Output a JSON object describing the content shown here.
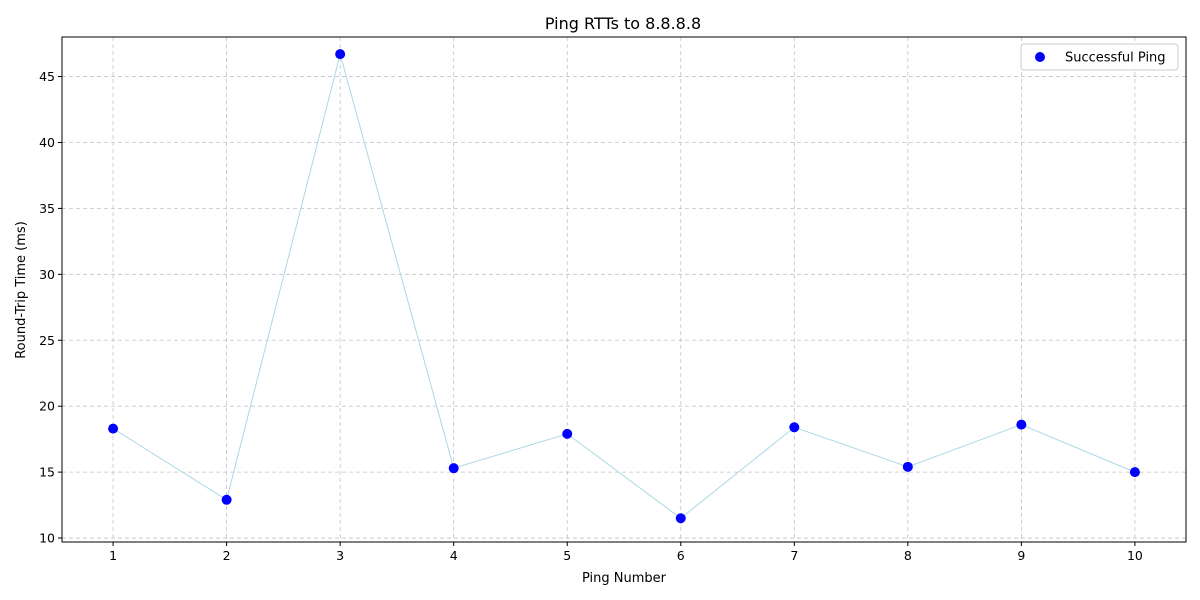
{
  "chart_data": {
    "type": "scatter",
    "title": "Ping RTTs to 8.8.8.8",
    "xlabel": "Ping Number",
    "ylabel": "Round-Trip Time (ms)",
    "x": [
      1,
      2,
      3,
      4,
      5,
      6,
      7,
      8,
      9,
      10
    ],
    "series": [
      {
        "name": "Successful Ping",
        "values": [
          18.3,
          12.9,
          46.7,
          15.3,
          17.9,
          11.5,
          18.4,
          15.4,
          18.6,
          15.0
        ],
        "marker_color": "#0000ff",
        "line_color": "#add8e6"
      }
    ],
    "xticks": [
      1,
      2,
      3,
      4,
      5,
      6,
      7,
      8,
      9,
      10
    ],
    "yticks": [
      10,
      15,
      20,
      25,
      30,
      35,
      40,
      45
    ],
    "xlim": [
      0.55,
      10.45
    ],
    "ylim": [
      9.7,
      48.0
    ],
    "grid": true,
    "legend_position": "top-right"
  }
}
